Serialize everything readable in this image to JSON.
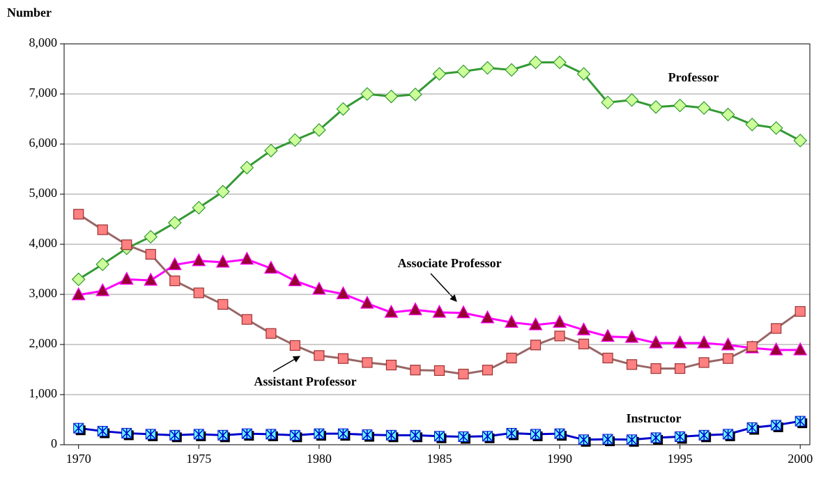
{
  "chart_data": {
    "type": "line",
    "y_label": "Number",
    "x": [
      1970,
      1971,
      1972,
      1973,
      1974,
      1975,
      1976,
      1977,
      1978,
      1979,
      1980,
      1981,
      1982,
      1983,
      1984,
      1985,
      1986,
      1987,
      1988,
      1989,
      1990,
      1991,
      1992,
      1993,
      1994,
      1995,
      1996,
      1997,
      1998,
      1999,
      2000
    ],
    "xlim": [
      1969.4,
      2000.4
    ],
    "xticks": [
      1970,
      1975,
      1980,
      1985,
      1990,
      1995,
      2000
    ],
    "ylim": [
      0,
      8000
    ],
    "yticks": [
      0,
      {
        "value": 1000,
        "label": "1,000"
      },
      {
        "value": 2000,
        "label": "2,000"
      },
      {
        "value": 3000,
        "label": "3,000"
      },
      {
        "value": 4000,
        "label": "4,000"
      },
      {
        "value": 5000,
        "label": "5,000"
      },
      {
        "value": 6000,
        "label": "6,000"
      },
      {
        "value": 7000,
        "label": "7,000"
      },
      {
        "value": 8000,
        "label": "8,000"
      }
    ],
    "grid": true,
    "series": [
      {
        "name": "Professor",
        "color": "#339933",
        "marker": "diamond",
        "marker_color": "#ccff99",
        "values": [
          3300,
          3600,
          3920,
          4150,
          4430,
          4730,
          5050,
          5530,
          5870,
          6080,
          6280,
          6700,
          7000,
          6950,
          6990,
          7400,
          7450,
          7520,
          7480,
          7630,
          7630,
          7400,
          6830,
          6880,
          6740,
          6770,
          6720,
          6590,
          6390,
          6320,
          6070
        ]
      },
      {
        "name": "Associate Professor",
        "color": "#ff00ff",
        "marker": "triangle",
        "marker_color": "#990033",
        "values": [
          2990,
          3070,
          3300,
          3280,
          3590,
          3670,
          3640,
          3700,
          3520,
          3270,
          3100,
          3010,
          2820,
          2640,
          2690,
          2640,
          2630,
          2530,
          2440,
          2390,
          2440,
          2290,
          2160,
          2140,
          2030,
          2030,
          2030,
          1990,
          1930,
          1890,
          1890
        ]
      },
      {
        "name": "Assistant Professor",
        "color": "#996666",
        "marker": "square",
        "marker_color": "#ff8080",
        "values": [
          4600,
          4290,
          3990,
          3800,
          3270,
          3030,
          2800,
          2500,
          2220,
          1980,
          1780,
          1720,
          1640,
          1590,
          1490,
          1480,
          1410,
          1490,
          1730,
          1990,
          2170,
          2010,
          1730,
          1600,
          1520,
          1520,
          1640,
          1720,
          1960,
          2320,
          2660
        ]
      },
      {
        "name": "Instructor",
        "color": "#0000cc",
        "marker": "star-square",
        "marker_color": "#66ffff",
        "values": [
          330,
          270,
          230,
          210,
          190,
          210,
          190,
          220,
          210,
          190,
          220,
          220,
          200,
          190,
          190,
          170,
          160,
          170,
          230,
          210,
          220,
          100,
          110,
          100,
          140,
          160,
          190,
          210,
          340,
          390,
          470
        ]
      }
    ]
  }
}
